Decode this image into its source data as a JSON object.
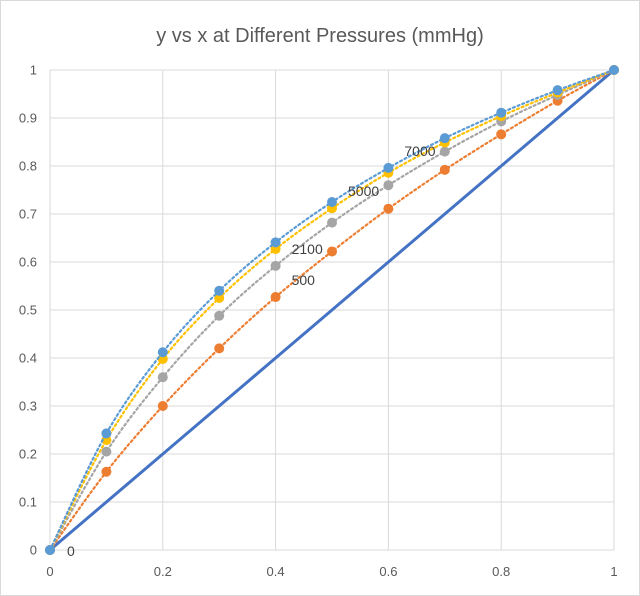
{
  "chart_data": {
    "type": "scatter",
    "title": "y vs x at Different Pressures (mmHg)",
    "xlabel": "",
    "ylabel": "",
    "xlim": [
      0,
      1
    ],
    "ylim": [
      0,
      1
    ],
    "x_ticks": [
      "0",
      "0.2",
      "0.4",
      "0.6",
      "0.8",
      "1"
    ],
    "y_ticks": [
      "0",
      "0.1",
      "0.2",
      "0.3",
      "0.4",
      "0.5",
      "0.6",
      "0.7",
      "0.8",
      "0.9",
      "1"
    ],
    "grid": true,
    "legend": "none",
    "x": [
      0,
      0.1,
      0.2,
      0.3,
      0.4,
      0.5,
      0.6,
      0.7,
      0.8,
      0.9,
      1
    ],
    "series": [
      {
        "label_text": "0",
        "color": "#4472c4",
        "style": "solid",
        "markers": false,
        "values": [
          0,
          0.1,
          0.2,
          0.3,
          0.4,
          0.5,
          0.6,
          0.7,
          0.8,
          0.9,
          1
        ],
        "label_at": [
          0.02,
          0
        ]
      },
      {
        "label_text": "500",
        "color": "#ed7d31",
        "style": "dotted",
        "markers": true,
        "values": [
          0,
          0.163,
          0.3,
          0.42,
          0.527,
          0.622,
          0.711,
          0.792,
          0.866,
          0.936,
          1
        ],
        "label_at": [
          0.4,
          0.527
        ]
      },
      {
        "label_text": "2100",
        "color": "#a5a5a5",
        "style": "dotted",
        "markers": true,
        "values": [
          0,
          0.205,
          0.36,
          0.488,
          0.592,
          0.682,
          0.76,
          0.83,
          0.893,
          0.948,
          1
        ],
        "label_at": [
          0.4,
          0.592
        ]
      },
      {
        "label_text": "5000",
        "color": "#ffc000",
        "style": "dotted",
        "markers": true,
        "values": [
          0,
          0.229,
          0.398,
          0.525,
          0.627,
          0.712,
          0.786,
          0.849,
          0.904,
          0.953,
          1
        ],
        "label_at": [
          0.5,
          0.712
        ]
      },
      {
        "label_text": "7000",
        "color": "#5b9bd5",
        "style": "dotted",
        "markers": true,
        "values": [
          0,
          0.243,
          0.412,
          0.54,
          0.641,
          0.725,
          0.796,
          0.858,
          0.911,
          0.958,
          1
        ],
        "label_at": [
          0.6,
          0.796
        ]
      }
    ]
  }
}
